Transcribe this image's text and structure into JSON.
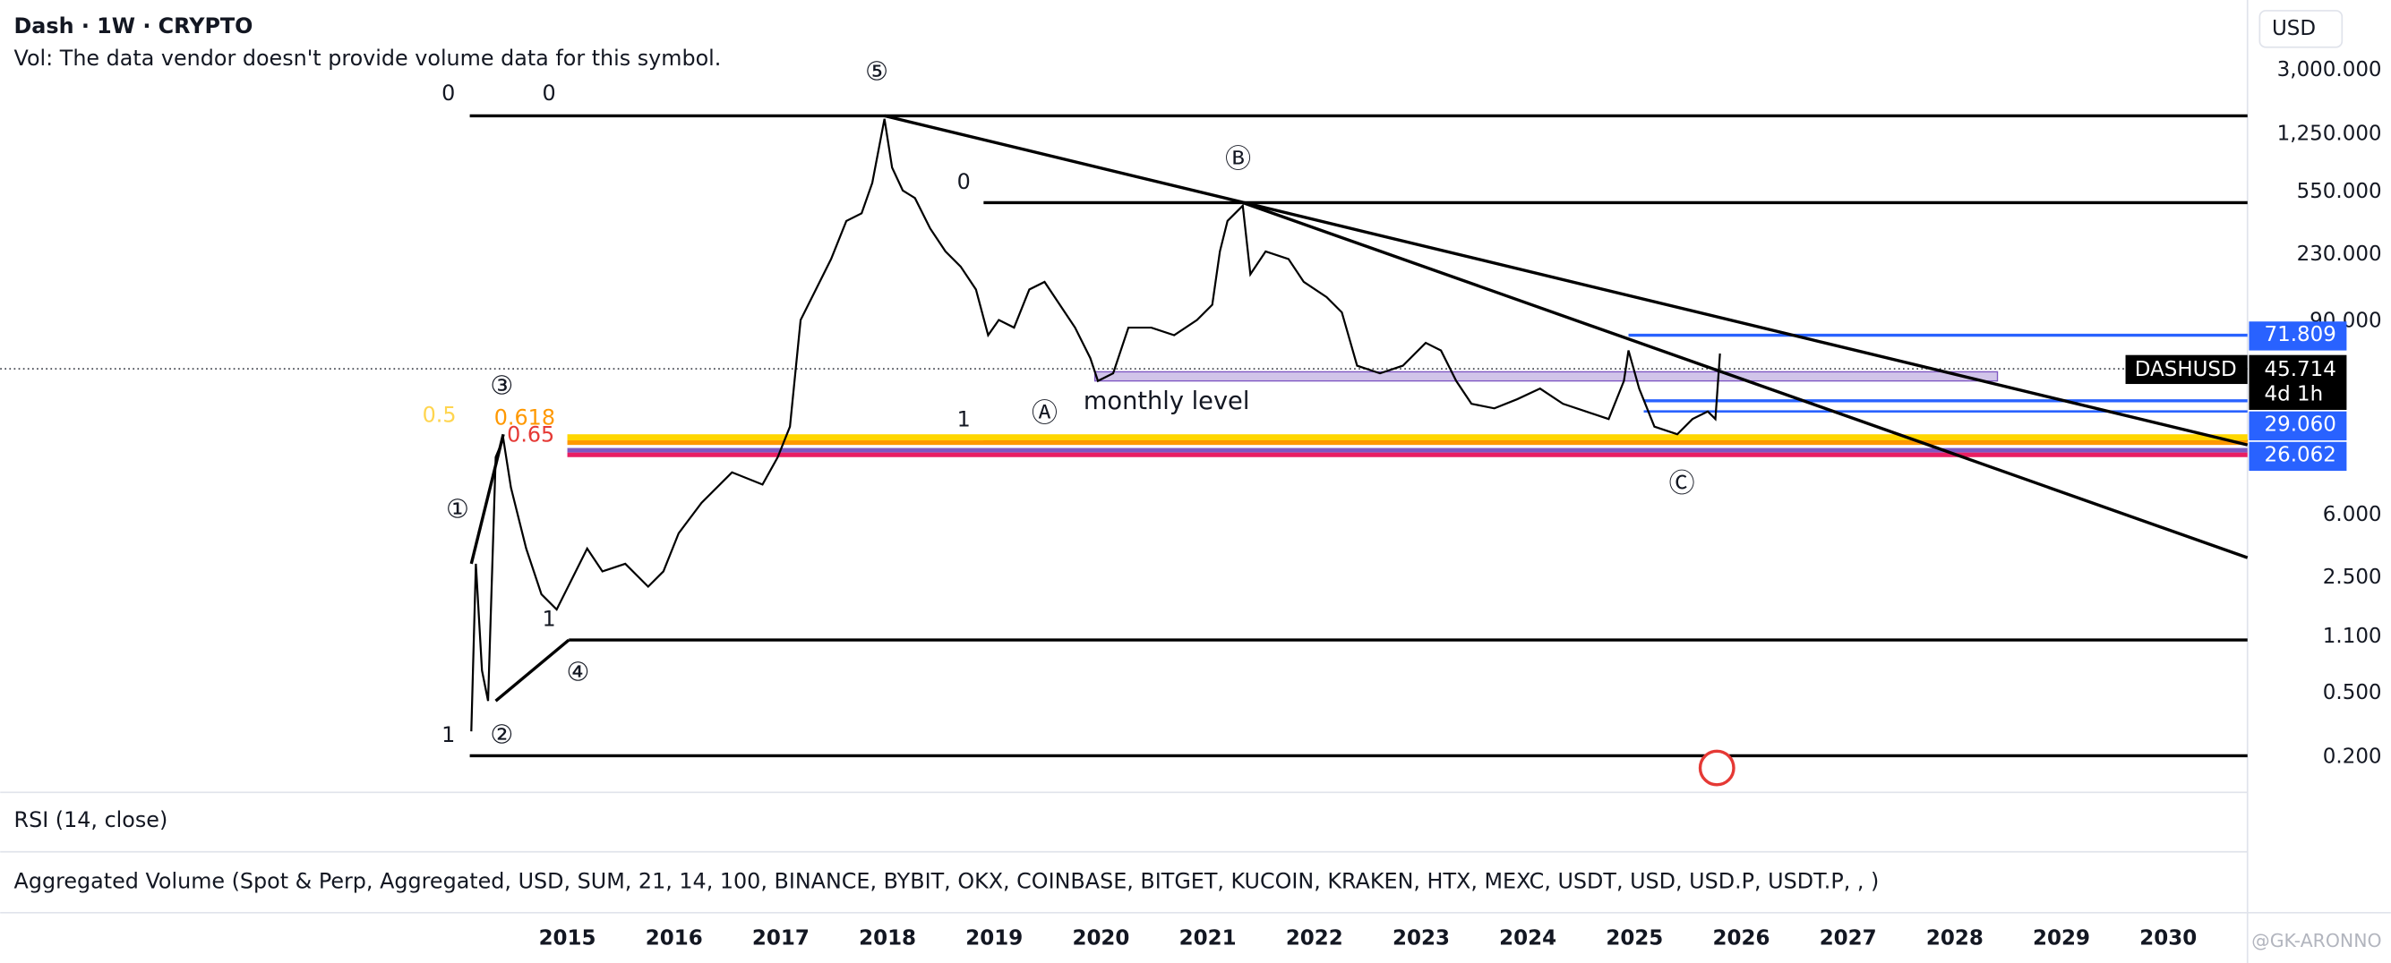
{
  "header": {
    "title": "Dash · 1W · CRYPTO",
    "volume_note": "Vol: The data vendor doesn't provide volume data for this symbol."
  },
  "annotations": {
    "wave_5": "⑤",
    "wave_3": "③",
    "wave_1": "①",
    "wave_2": "②",
    "wave_4": "④",
    "wave_b": "Ⓑ",
    "wave_a": "Ⓐ",
    "wave_c": "Ⓒ",
    "fib_top_left_0": "0",
    "fib_top_right_0": "0",
    "fib_mid_0": "0",
    "fib_mid_1": "1",
    "fib_0_5": "0.5",
    "fib_0_618": "0.618",
    "fib_0_65": "0.65",
    "fib_bottom_1": "1",
    "fib_small_1": "1",
    "monthly_level": "monthly level"
  },
  "price_axis": {
    "currency": "USD",
    "labels": [
      "3,000.000",
      "1,250.000",
      "550.000",
      "230.000",
      "90.000",
      "6.000",
      "2.500",
      "1.100",
      "0.500",
      "0.200"
    ]
  },
  "price_tags": {
    "upper": "71.809",
    "symbol": "DASHUSD",
    "last": "45.714",
    "countdown": "4d 1h",
    "lower": "29.060",
    "bottom": "26.062"
  },
  "time_axis": {
    "labels": [
      "2015",
      "2016",
      "2017",
      "2018",
      "2019",
      "2020",
      "2021",
      "2022",
      "2023",
      "2024",
      "2025",
      "2026",
      "2027",
      "2028",
      "2029",
      "2030"
    ]
  },
  "panes": {
    "rsi": "RSI (14, close)",
    "volume": "Aggregated Volume (Spot & Perp, Aggregated, USD, SUM, 21, 14, 100, BINANCE, BYBIT, OKX, COINBASE, BITGET, KUCOIN, KRAKEN, HTX, MEXC, USDT, USD, USD.P, USDT.P, , )"
  },
  "watermark": "@GK-ARONNO"
}
